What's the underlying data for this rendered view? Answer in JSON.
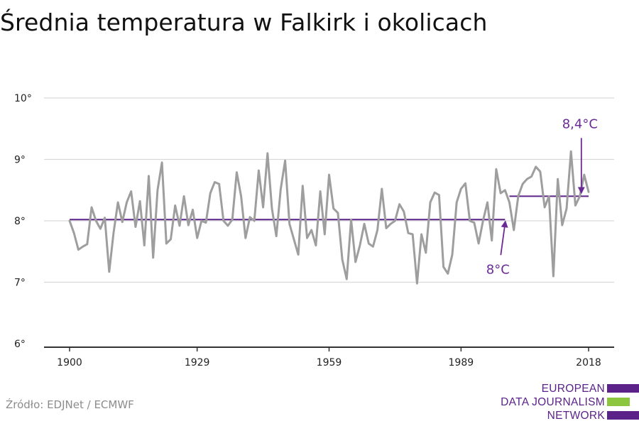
{
  "title": "Średnia temperatura w Falkirk i okolicach",
  "source": "Źródło: EDJNet / ECMWF",
  "logo": {
    "lines": [
      "EUROPEAN",
      "DATA JOURNALISM",
      "NETWORK"
    ],
    "colors": [
      "#5b2389",
      "#8cc63f",
      "#5b2389"
    ]
  },
  "colors": {
    "series": "#9e9e9e",
    "reference": "#5b2389",
    "annotation": "#6a2a94",
    "grid": "#d9d9d9",
    "axis": "#333333"
  },
  "chart_data": {
    "type": "line",
    "title": "Średnia temperatura w Falkirk i okolicach",
    "xlabel": "",
    "ylabel": "",
    "xlim": [
      1900,
      2018
    ],
    "ylim": [
      6,
      10
    ],
    "x_ticks": [
      {
        "value": 1900,
        "label": "1900"
      },
      {
        "value": 1929,
        "label": "1929"
      },
      {
        "value": 1959,
        "label": "1959"
      },
      {
        "value": 1989,
        "label": "1989"
      },
      {
        "value": 2018,
        "label": "2018"
      }
    ],
    "y_ticks": [
      {
        "value": 6,
        "label": "6°"
      },
      {
        "value": 7,
        "label": "7°"
      },
      {
        "value": 8,
        "label": "8°"
      },
      {
        "value": 9,
        "label": "9°"
      },
      {
        "value": 10,
        "label": "10°"
      }
    ],
    "grid": true,
    "series": [
      {
        "x": [
          1900,
          1901,
          1902,
          1903,
          1904,
          1905,
          1906,
          1907,
          1908,
          1909,
          1910,
          1911,
          1912,
          1913,
          1914,
          1915,
          1916,
          1917,
          1918,
          1919,
          1920,
          1921,
          1922,
          1923,
          1924,
          1925,
          1926,
          1927,
          1928,
          1929,
          1930,
          1931,
          1932,
          1933,
          1934,
          1935,
          1936,
          1937,
          1938,
          1939,
          1940,
          1941,
          1942,
          1943,
          1944,
          1945,
          1946,
          1947,
          1948,
          1949,
          1950,
          1951,
          1952,
          1953,
          1954,
          1955,
          1956,
          1957,
          1958,
          1959,
          1960,
          1961,
          1962,
          1963,
          1964,
          1965,
          1966,
          1967,
          1968,
          1969,
          1970,
          1971,
          1972,
          1973,
          1974,
          1975,
          1976,
          1977,
          1978,
          1979,
          1980,
          1981,
          1982,
          1983,
          1984,
          1985,
          1986,
          1987,
          1988,
          1989,
          1990,
          1991,
          1992,
          1993,
          1994,
          1995,
          1996,
          1997,
          1998,
          1999,
          2000,
          2001,
          2002,
          2003,
          2004,
          2005,
          2006,
          2007,
          2008,
          2009,
          2010,
          2011,
          2012,
          2013,
          2014,
          2015,
          2016,
          2017,
          2018
        ],
        "values": [
          8.0,
          7.8,
          7.53,
          7.58,
          7.62,
          8.22,
          8.0,
          7.87,
          8.05,
          7.17,
          7.8,
          8.3,
          7.98,
          8.3,
          8.48,
          7.9,
          8.32,
          7.6,
          8.73,
          7.4,
          8.5,
          8.95,
          7.63,
          7.7,
          8.25,
          7.92,
          8.4,
          7.93,
          8.18,
          7.72,
          8.0,
          7.97,
          8.45,
          8.63,
          8.6,
          8.0,
          7.92,
          8.02,
          8.79,
          8.4,
          7.72,
          8.06,
          8.0,
          8.82,
          8.22,
          9.1,
          8.2,
          7.75,
          8.52,
          8.98,
          7.95,
          7.7,
          7.45,
          8.57,
          7.72,
          7.85,
          7.6,
          8.48,
          7.78,
          8.75,
          8.2,
          8.13,
          7.37,
          7.05,
          8.02,
          7.33,
          7.6,
          7.95,
          7.63,
          7.58,
          7.85,
          8.52,
          7.88,
          7.95,
          8.0,
          8.27,
          8.15,
          7.8,
          7.78,
          6.98,
          7.78,
          7.48,
          8.3,
          8.46,
          8.42,
          7.25,
          7.14,
          7.45,
          8.3,
          8.52,
          8.61,
          8.0,
          7.97,
          7.63,
          8.0,
          8.3,
          7.68,
          8.84,
          8.45,
          8.5,
          8.3,
          7.85,
          8.4,
          8.6,
          8.68,
          8.72,
          8.88,
          8.8,
          8.22,
          8.4,
          7.1,
          8.68,
          7.93,
          8.2,
          9.13,
          8.25,
          8.4,
          8.75,
          8.47
        ]
      }
    ],
    "reference_lines": [
      {
        "from": 1900,
        "to": 1999,
        "value": 8.02
      },
      {
        "from": 2000,
        "to": 2018,
        "value": 8.4
      }
    ],
    "annotations": [
      {
        "text": "8°C",
        "x": 1999,
        "y": 8.02
      },
      {
        "text": "8,4°C",
        "x": 2017,
        "y": 8.4
      }
    ]
  }
}
